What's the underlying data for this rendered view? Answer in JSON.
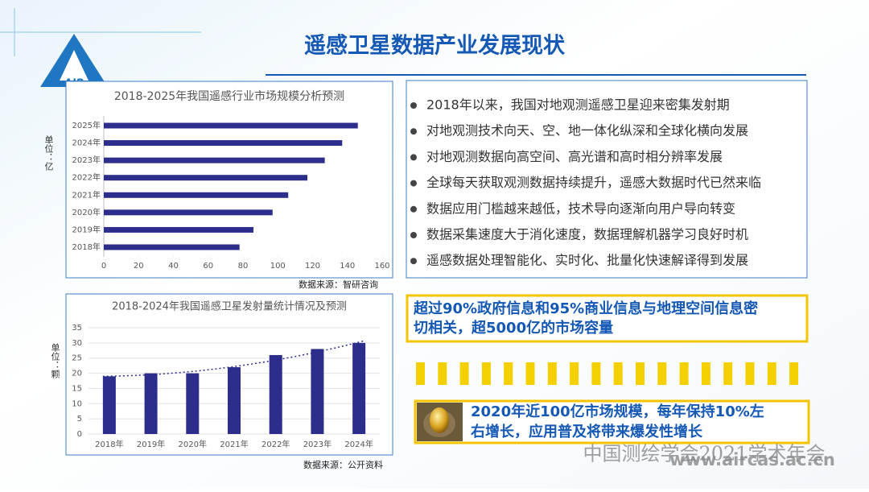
{
  "title": "遥感卫星数据产业发展现状",
  "logo": "AIR",
  "chart_data": [
    {
      "type": "hbar",
      "title": "2018-2025年我国遥感行业市场规模分析预测",
      "ylabel": "单位：亿",
      "source": "数据来源：智研咨询",
      "categories": [
        "2018年",
        "2019年",
        "2020年",
        "2021年",
        "2022年",
        "2023年",
        "2024年",
        "2025年"
      ],
      "values": [
        78,
        86,
        97,
        106,
        117,
        127,
        137,
        146
      ],
      "color": "#2d2d8c",
      "xlim": [
        0,
        160
      ],
      "xticks": [
        0,
        20,
        40,
        60,
        80,
        100,
        120,
        140,
        160
      ]
    },
    {
      "type": "bar",
      "title": "2018-2024年我国遥感卫星发射量统计情况及预测",
      "ylabel": "单位：颗",
      "source": "数据来源：公开资料",
      "categories": [
        "2018年",
        "2019年",
        "2020年",
        "2021年",
        "2022年",
        "2023年",
        "2024年"
      ],
      "values": [
        19,
        20,
        20,
        22,
        26,
        28,
        30
      ],
      "color": "#2d2d8c",
      "ylim": [
        0,
        35
      ],
      "yticks": [
        0,
        5,
        10,
        15,
        20,
        25,
        30,
        35
      ],
      "grid": true,
      "trendline": true
    }
  ],
  "bullets": [
    "2018年以来，我国对地观测遥感卫星迎来密集发射期",
    "对地观测技术向天、空、地一体化纵深和全球化横向发展",
    "对地观测数据向高空间、高光谱和高时相分辨率发展",
    "全球每天获取观测数据持续提升，遥感大数据时代已然来临",
    "数据应用门槛越来越低，技术导向逐渐向用户导向转变",
    "数据采集速度大于消化速度，数据理解机器学习良好时机",
    "遥感数据处理智能化、实时化、批量化快速解译得到发展"
  ],
  "highlight1": [
    "超过90%政府信息和95%商业信息与地理空间信息密",
    "切相关，超5000亿的市场容量"
  ],
  "highlight2": [
    "2020年近100亿市场规模，每年保持10%左",
    "右增长，应用普及将带来爆发性增长"
  ],
  "watermark": "中国测绘学会2021学术年会",
  "url": "www.aircas.ac.cn"
}
